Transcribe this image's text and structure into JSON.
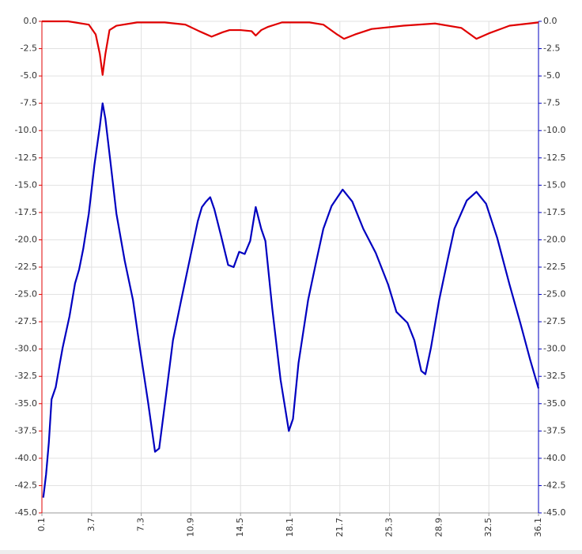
{
  "chart_data": {
    "type": "line",
    "xlim": [
      0.1,
      36.1
    ],
    "xticks": [
      0.1,
      3.7,
      7.3,
      10.9,
      14.5,
      18.1,
      21.7,
      25.3,
      28.9,
      32.5,
      36.1
    ],
    "ylim": [
      -45,
      0
    ],
    "yticks": [
      {
        "value": 0,
        "label": "0.0"
      },
      -2.5,
      {
        "value": -5,
        "label": "-5.0"
      },
      -7.5,
      {
        "value": -10,
        "label": "-10.0"
      },
      -12.5,
      {
        "value": -15,
        "label": "-15.0"
      },
      -17.5,
      {
        "value": -20,
        "label": "-20.0"
      },
      -22.5,
      {
        "value": -25,
        "label": "-25.0"
      },
      -27.5,
      {
        "value": -30,
        "label": "-30.0"
      },
      -32.5,
      {
        "value": -35,
        "label": "-35.0"
      },
      -37.5,
      {
        "value": -40,
        "label": "-40.0"
      },
      -42.5,
      {
        "value": -45,
        "label": "-45.0"
      }
    ],
    "y2lim": [
      -45,
      0
    ],
    "y2ticks": [
      {
        "value": 0,
        "label": "0.0"
      },
      -2.5,
      {
        "value": -5,
        "label": "-5.0"
      },
      -7.5,
      {
        "value": -10,
        "label": "-10.0"
      },
      -12.5,
      {
        "value": -15,
        "label": "-15.0"
      },
      -17.5,
      {
        "value": -20,
        "label": "-20.0"
      },
      -22.5,
      {
        "value": -25,
        "label": "-25.0"
      },
      -27.5,
      {
        "value": -30,
        "label": "-30.0"
      },
      -32.5,
      {
        "value": -35,
        "label": "-35.0"
      },
      -37.5,
      {
        "value": -40,
        "label": "-40.0"
      },
      -42.5,
      {
        "value": -45,
        "label": "-45.0"
      }
    ],
    "grid": true,
    "series": [
      {
        "color": "#e00000",
        "x": [
          0.1,
          2.0,
          3.5,
          4.0,
          4.3,
          4.5,
          4.7,
          5.0,
          5.5,
          7.0,
          9.0,
          10.5,
          11.5,
          12.4,
          13.2,
          13.7,
          14.5,
          15.3,
          15.6,
          16.0,
          16.5,
          17.5,
          19.5,
          20.5,
          21.5,
          22.0,
          22.8,
          24.0,
          26.3,
          28.6,
          30.5,
          31.6,
          32.5,
          34.0,
          36.1
        ],
        "values": [
          0,
          0,
          -0.3,
          -1.2,
          -3.0,
          -4.9,
          -3.0,
          -0.8,
          -0.4,
          -0.1,
          -0.1,
          -0.3,
          -0.9,
          -1.4,
          -1.0,
          -0.8,
          -0.8,
          -0.9,
          -1.3,
          -0.8,
          -0.5,
          -0.1,
          -0.1,
          -0.3,
          -1.2,
          -1.6,
          -1.2,
          -0.7,
          -0.4,
          -0.2,
          -0.6,
          -1.6,
          -1.1,
          -0.4,
          -0.1
        ]
      },
      {
        "color": "#0000c0",
        "axis": "y2",
        "x": [
          0.2,
          0.4,
          0.6,
          0.8,
          1.1,
          1.4,
          1.6,
          2.1,
          2.5,
          2.8,
          3.1,
          3.5,
          3.9,
          4.3,
          4.5,
          4.7,
          5.1,
          5.5,
          6.1,
          6.7,
          7.2,
          7.8,
          8.3,
          8.6,
          9.1,
          9.6,
          10.2,
          10.8,
          11.4,
          11.7,
          12.0,
          12.3,
          12.6,
          13.1,
          13.6,
          14.0,
          14.4,
          14.8,
          15.2,
          15.6,
          16.0,
          16.3,
          16.8,
          17.4,
          18.0,
          18.3,
          18.7,
          19.4,
          20.0,
          20.5,
          21.1,
          21.9,
          22.6,
          23.4,
          24.3,
          25.2,
          25.8,
          26.6,
          27.1,
          27.6,
          27.9,
          28.3,
          28.9,
          29.5,
          30.0,
          30.9,
          31.6,
          32.3,
          33.1,
          34.0,
          34.8,
          35.5,
          36.1
        ],
        "values": [
          -43.6,
          -41.5,
          -38.6,
          -34.6,
          -33.5,
          -31.3,
          -29.9,
          -27.0,
          -24.0,
          -22.7,
          -20.8,
          -17.6,
          -13.2,
          -9.6,
          -7.5,
          -8.9,
          -13.2,
          -17.6,
          -21.9,
          -25.5,
          -29.9,
          -34.9,
          -39.4,
          -39.1,
          -34.2,
          -29.2,
          -25.5,
          -21.9,
          -18.3,
          -17.0,
          -16.5,
          -16.1,
          -17.2,
          -19.7,
          -22.3,
          -22.5,
          -21.1,
          -21.3,
          -20.1,
          -17.0,
          -19.0,
          -20.1,
          -26.3,
          -32.8,
          -37.5,
          -36.4,
          -31.3,
          -25.5,
          -21.9,
          -19.0,
          -16.9,
          -15.4,
          -16.5,
          -19.0,
          -21.2,
          -24.1,
          -26.6,
          -27.6,
          -29.2,
          -32.0,
          -32.3,
          -29.9,
          -25.5,
          -21.9,
          -19.0,
          -16.4,
          -15.6,
          -16.7,
          -19.8,
          -24.1,
          -27.7,
          -31.0,
          -33.6
        ]
      }
    ]
  }
}
